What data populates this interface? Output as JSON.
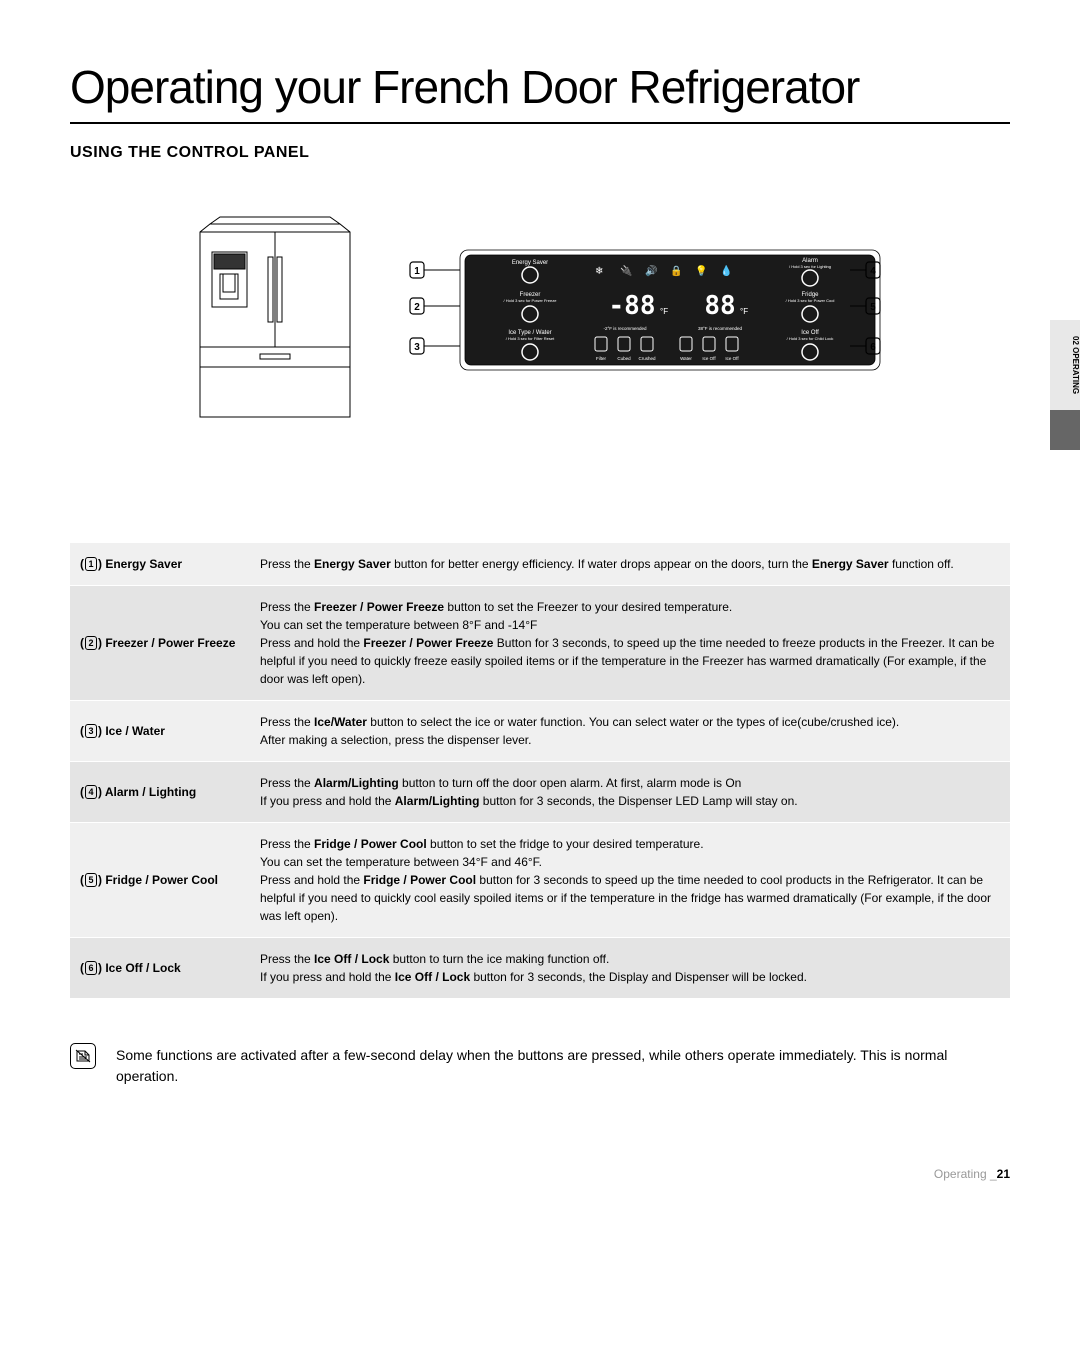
{
  "page_title": "Operating your French Door Refrigerator",
  "section_title": "USING THE CONTROL PANEL",
  "side_tab": "02 OPERATING",
  "control_panel": {
    "energy_saver": "Energy Saver",
    "alarm": "Alarm",
    "alarm_sub": "/ Hold 3 sec for Lighting",
    "freezer": "Freezer",
    "freezer_sub": "/ Hold 3 sec for Power Freeze",
    "fridge": "Fridge",
    "fridge_sub": "/ Hold 3 sec for Power Cool",
    "ice_type": "Ice Type / Water",
    "ice_type_sub": "/ Hold 3 sec for Filter Reset",
    "ice_off": "Ice Off",
    "ice_off_sub": "/ Hold 3 sec for Child Lock",
    "temp_display": "-88",
    "temp_display2": "88",
    "freezer_rec": "-2°F is recommended",
    "fridge_rec": "38°F is recommended",
    "icons": [
      "Filter",
      "Cubed",
      "Crushed",
      "Water",
      "Ice Off",
      "Ice Off"
    ]
  },
  "functions": [
    {
      "num": "1",
      "name": "Energy Saver",
      "desc_parts": [
        "Press the ",
        "Energy Saver",
        " button for better energy efficiency. If water drops appear on the doors, turn the ",
        "Energy Saver",
        " function off."
      ]
    },
    {
      "num": "2",
      "name": "Freezer / Power Freeze",
      "desc_parts": [
        "Press the ",
        "Freezer / Power Freeze",
        " button to set the Freezer to your desired temperature.\nYou can set the temperature between 8°F and -14°F\nPress and hold the ",
        "Freezer / Power Freeze",
        " Button for 3 seconds, to speed up the time needed to freeze products in the Freezer.  It can be helpful if you need to quickly freeze easily spoiled items or if the temperature in the Freezer has warmed dramatically (For example, if the door was left open)."
      ]
    },
    {
      "num": "3",
      "name": "Ice / Water",
      "desc_parts": [
        "Press the ",
        "Ice/Water",
        " button to select the ice or water function. You can select water or the types of ice(cube/crushed ice).\nAfter making a selection, press the dispenser lever."
      ]
    },
    {
      "num": "4",
      "name": "Alarm / Lighting",
      "desc_parts": [
        "Press the ",
        "Alarm/Lighting",
        " button to turn off the door open alarm. At first, alarm mode is On\nIf you press and hold the ",
        "Alarm/Lighting",
        " button for 3 seconds, the Dispenser LED Lamp will stay on."
      ]
    },
    {
      "num": "5",
      "name": "Fridge / Power Cool",
      "desc_parts": [
        "Press the ",
        "Fridge / Power Cool",
        " button to set the fridge to your desired temperature.\nYou can set the temperature between 34°F and 46°F.\nPress and hold the ",
        "Fridge / Power Cool",
        " button for 3 seconds to speed up the time needed to cool products in the Refrigerator. It can be helpful if you need to quickly cool easily spoiled items or if the temperature in the fridge has warmed dramatically (For example, if the door was left open)."
      ]
    },
    {
      "num": "6",
      "name": "Ice Off / Lock",
      "desc_parts": [
        "Press the ",
        "Ice Off / Lock",
        " button to turn the ice making function off.\nIf you press and hold the ",
        "Ice Off / Lock",
        " button for 3 seconds, the Display and Dispenser will be locked."
      ]
    }
  ],
  "note": "Some functions are activated after a few-second delay when the buttons are pressed, while others operate immediately. This is normal operation.",
  "footer": {
    "label": "Operating _",
    "page": "21"
  }
}
